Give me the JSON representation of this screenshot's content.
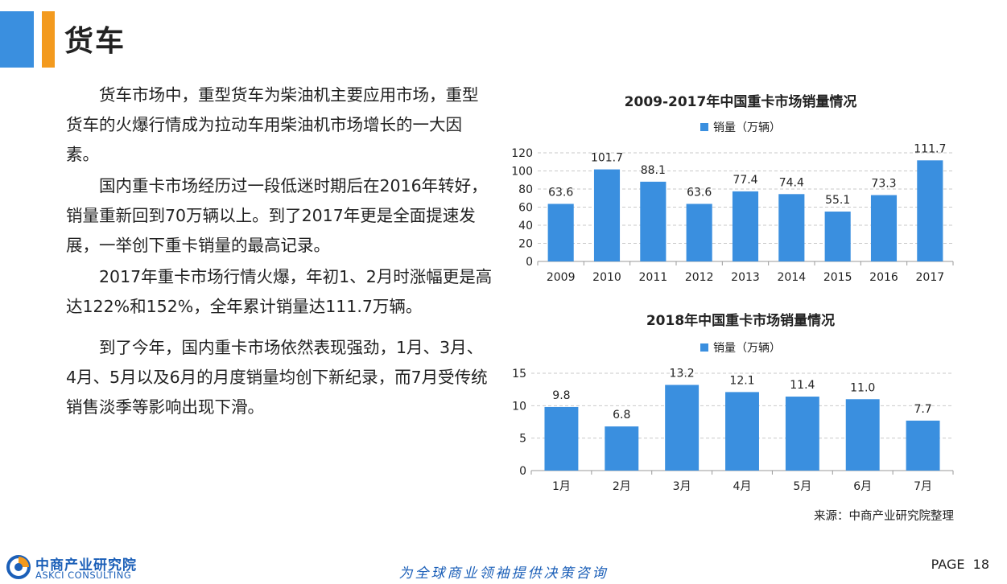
{
  "header": {
    "title": "货车"
  },
  "paragraphs": [
    "货车市场中，重型货车为柴油机主要应用市场，重型货车的火爆行情成为拉动车用柴油机市场增长的一大因素。",
    "国内重卡市场经历过一段低迷时期后在2016年转好，销量重新回到70万辆以上。到了2017年更是全面提速发展，一举创下重卡销量的最高记录。",
    "2017年重卡市场行情火爆，年初1、2月时涨幅更是高达122%和152%，全年累计销量达111.7万辆。",
    "到了今年，国内重卡市场依然表现强劲，1月、3月、4月、5月以及6月的月度销量均创下新纪录，而7月受传统销售淡季等影响出现下滑。"
  ],
  "chart_data": [
    {
      "type": "bar",
      "title": "2009-2017年中国重卡市场销量情况",
      "legend_position": "top",
      "grid": true,
      "categories": [
        "2009",
        "2010",
        "2011",
        "2012",
        "2013",
        "2014",
        "2015",
        "2016",
        "2017"
      ],
      "series": [
        {
          "name": "销量（万辆）",
          "values": [
            63.6,
            101.7,
            88.1,
            63.6,
            77.4,
            74.4,
            55.1,
            73.3,
            111.7
          ]
        }
      ],
      "data_labels": [
        "63.6",
        "101.7",
        "88.1",
        "63.6",
        "77.4",
        "74.4",
        "55.1",
        "73.3",
        "111.7"
      ],
      "ylim": [
        0,
        120
      ],
      "yticks": [
        0,
        20,
        40,
        60,
        80,
        100,
        120
      ],
      "color": "#3a8fdf"
    },
    {
      "type": "bar",
      "title": "2018年中国重卡市场销量情况",
      "legend_position": "top",
      "grid": true,
      "categories": [
        "1月",
        "2月",
        "3月",
        "4月",
        "5月",
        "6月",
        "7月"
      ],
      "series": [
        {
          "name": "销量（万辆）",
          "values": [
            9.8,
            6.8,
            13.2,
            12.1,
            11.4,
            11.0,
            7.7
          ]
        }
      ],
      "data_labels": [
        "9.8",
        "6.8",
        "13.2",
        "12.1",
        "11.4",
        "11.0",
        "7.7"
      ],
      "ylim": [
        0,
        15
      ],
      "yticks": [
        0,
        5,
        10,
        15
      ],
      "color": "#3a8fdf"
    }
  ],
  "source": "来源：中商产业研究院整理",
  "footer": {
    "logo_cn": "中商产业研究院",
    "logo_en": "ASKCI CONSULTING",
    "slogan": "为全球商业领袖提供决策咨询",
    "page_label": "PAGE",
    "page_number": "18"
  }
}
